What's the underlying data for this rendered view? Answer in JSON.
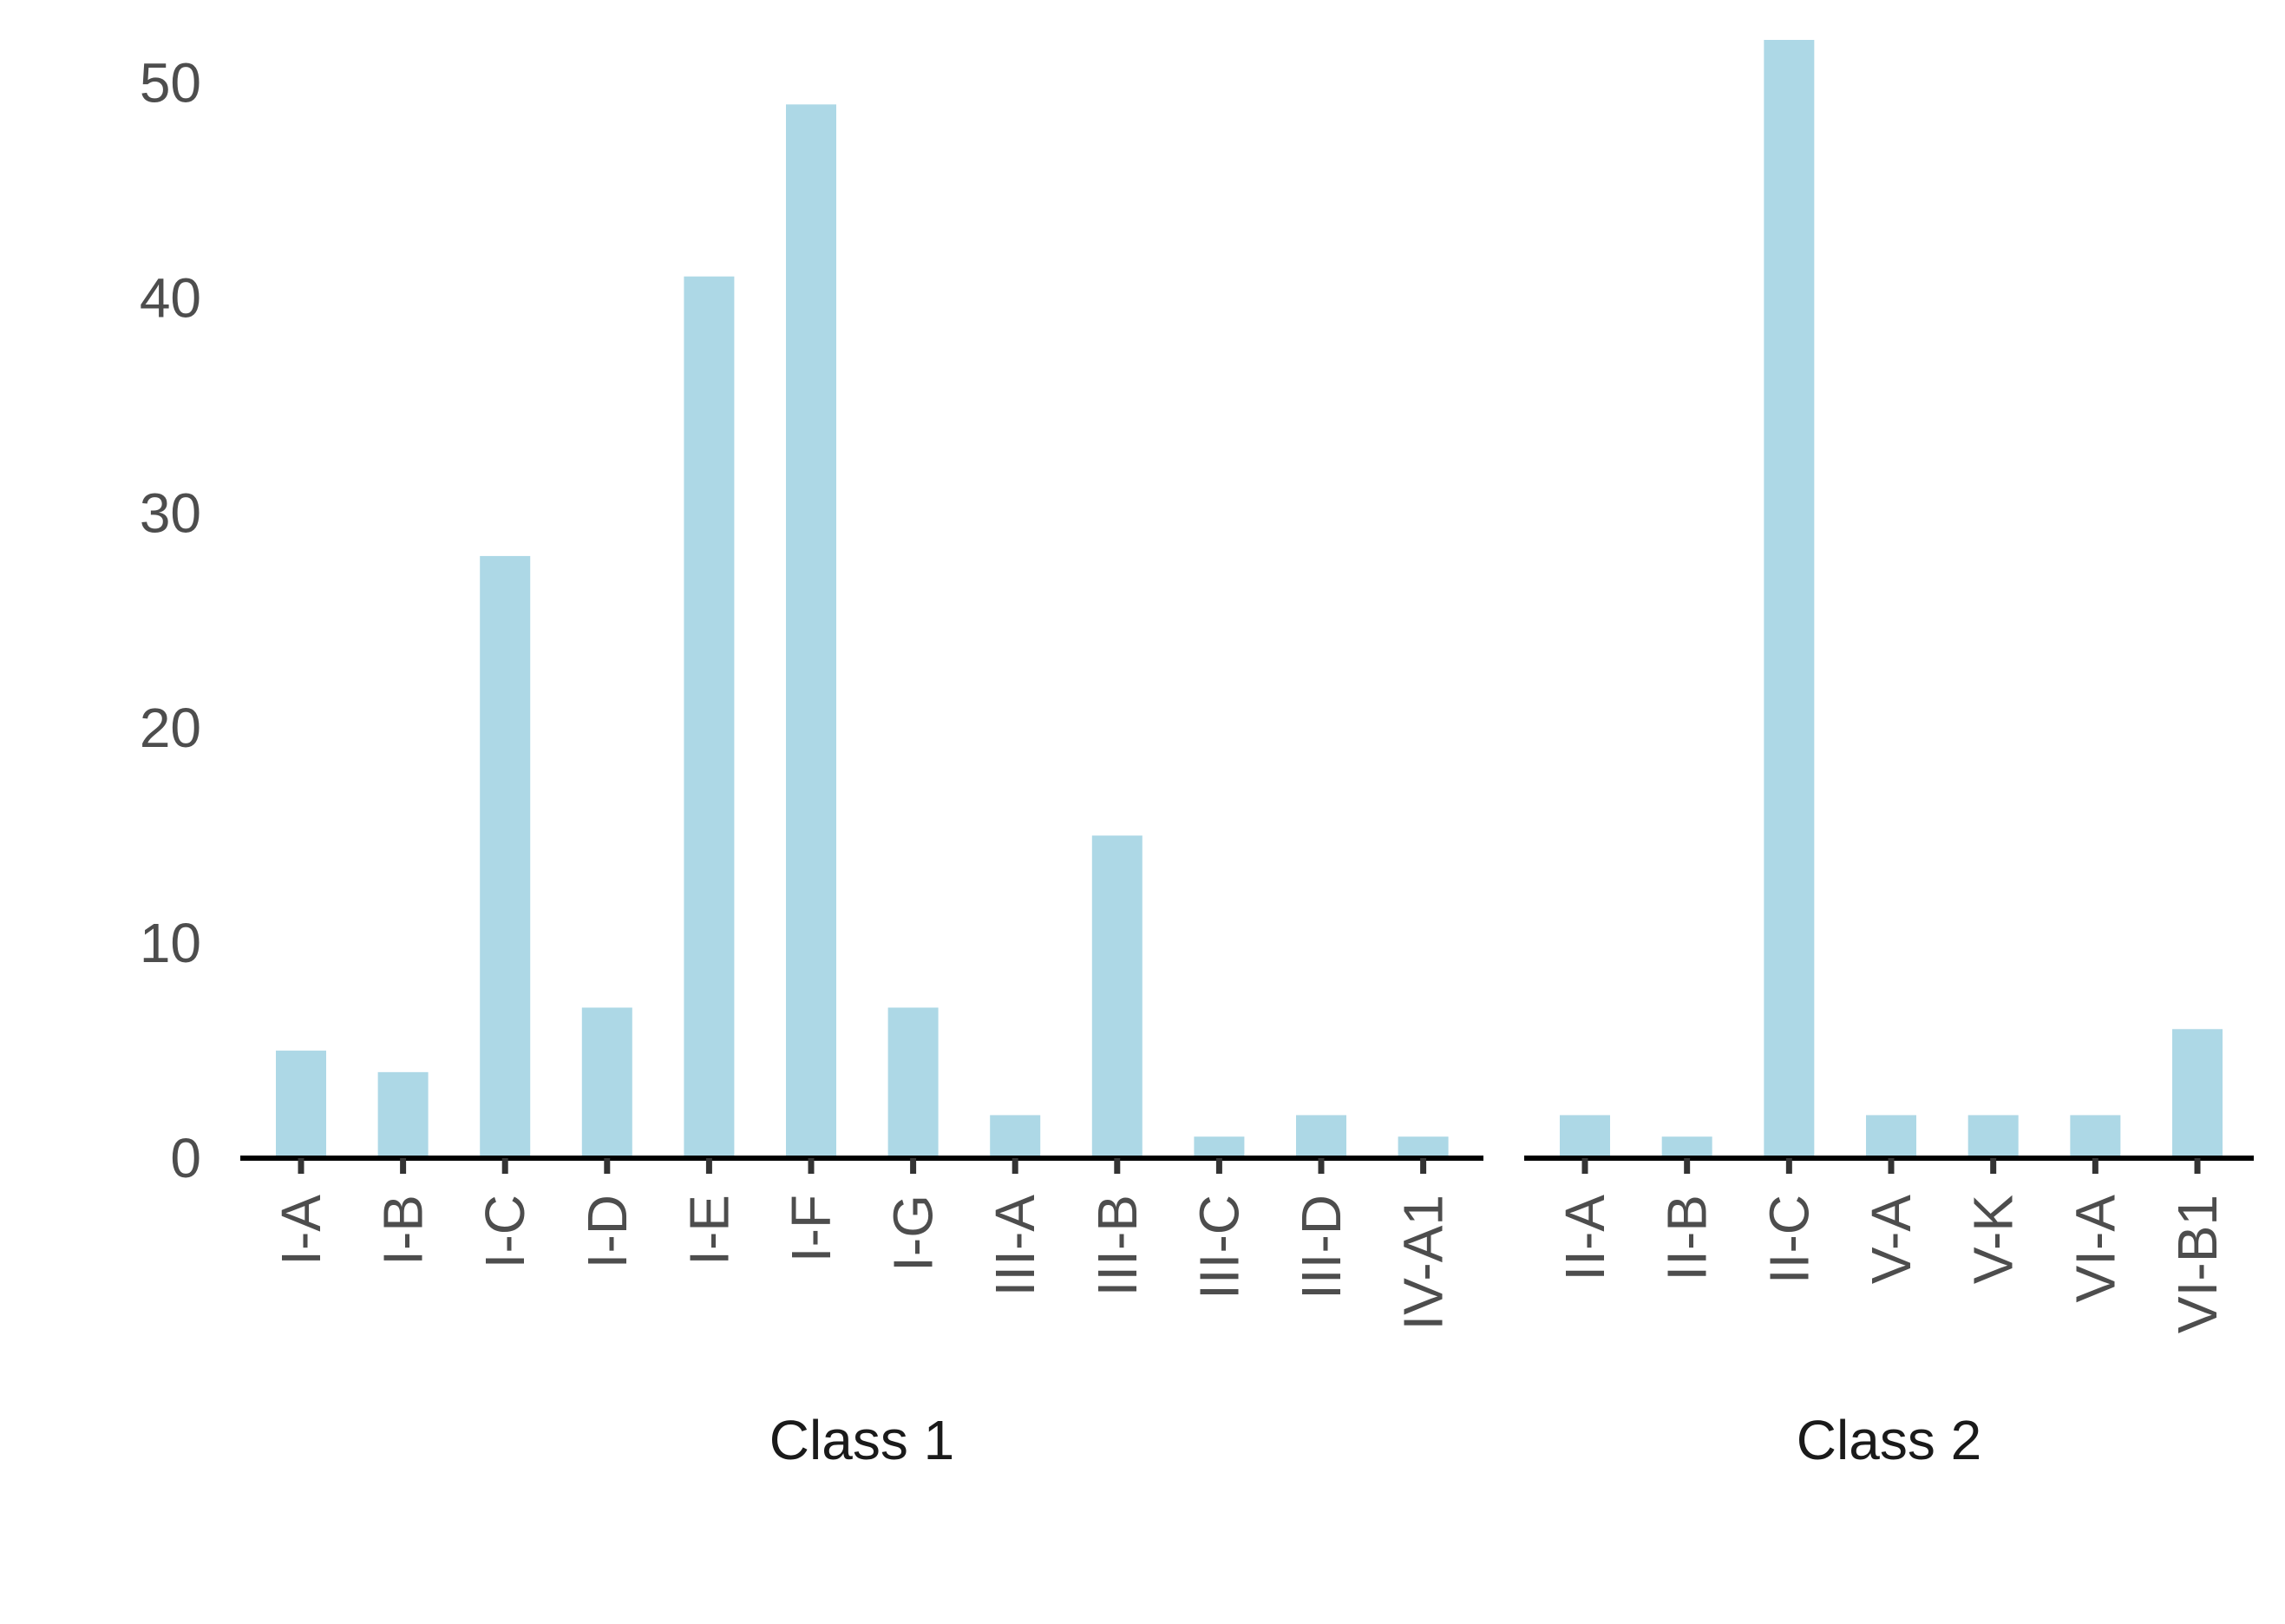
{
  "colors": {
    "bar": "#add8e6",
    "axis": "#000000",
    "tick": "#333333",
    "tick_label": "#4d4d4d",
    "panel_label": "#1a1a1a"
  },
  "chart_data": {
    "type": "bar",
    "ylim": [
      0,
      52
    ],
    "y_ticks": [
      0,
      10,
      20,
      30,
      40,
      50
    ],
    "grid": false,
    "panels": [
      {
        "label": "Class 1",
        "categories": [
          "I-A",
          "I-B",
          "I-C",
          "I-D",
          "I-E",
          "I-F",
          "I-G",
          "III-A",
          "III-B",
          "III-C",
          "III-D",
          "IV-A1"
        ],
        "values": [
          5,
          4,
          28,
          7,
          41,
          49,
          7,
          2,
          15,
          1,
          2,
          1
        ]
      },
      {
        "label": "Class 2",
        "categories": [
          "II-A",
          "II-B",
          "II-C",
          "V-A",
          "V-K",
          "VI-A",
          "VI-B1"
        ],
        "values": [
          2,
          1,
          52,
          2,
          2,
          2,
          6
        ]
      }
    ]
  }
}
